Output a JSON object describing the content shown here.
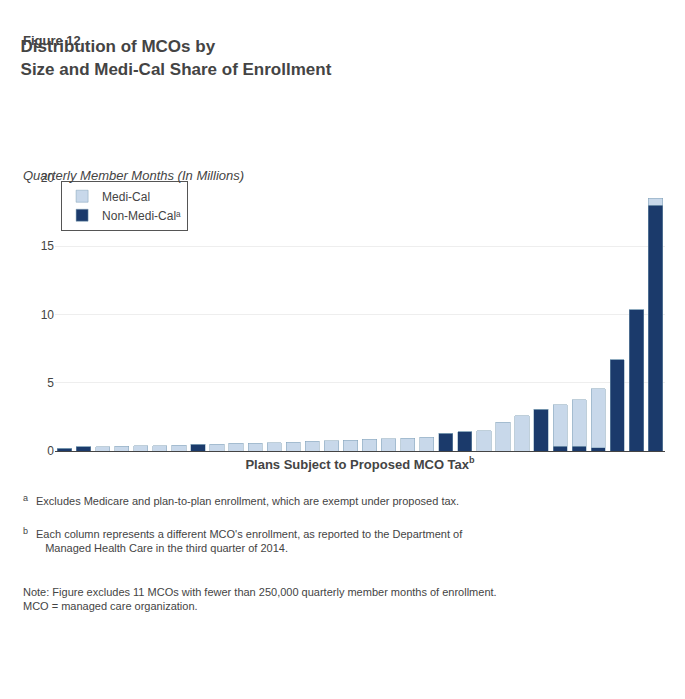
{
  "chart_data": {
    "type": "bar",
    "title": "Distribution of MCOs by\nSize and Medi-Cal Share of Enrollment",
    "subtitle": "Quarterly Member Months (In Millions)",
    "xlabel": "Plans Subject to Proposed MCO Tax",
    "categories": [
      null,
      null,
      null,
      null,
      null,
      null,
      null,
      null,
      null,
      null,
      null,
      null,
      null,
      null,
      null,
      null,
      null,
      null,
      null,
      null,
      null,
      null,
      null,
      null,
      null,
      null,
      null,
      null,
      null,
      null,
      null,
      null
    ],
    "series": [
      {
        "name": "Non-Medi-Calᵃ",
        "color": "#1B3A6B",
        "values": [
          0.22,
          0.3,
          0.0,
          0.0,
          0.0,
          0.0,
          0.0,
          0.5,
          0.0,
          0.0,
          0.0,
          0.0,
          0.0,
          0.0,
          0.0,
          0.0,
          0.0,
          0.0,
          0.0,
          0.0,
          1.3,
          1.4,
          0.0,
          0.0,
          0.0,
          3.05,
          0.35,
          0.35,
          0.25,
          6.7,
          10.35,
          18.0
        ]
      },
      {
        "name": "Medi-Cal",
        "color": "#C8D8EA",
        "values": [
          0.0,
          0.0,
          0.32,
          0.35,
          0.38,
          0.4,
          0.42,
          0.0,
          0.5,
          0.55,
          0.58,
          0.62,
          0.65,
          0.7,
          0.75,
          0.8,
          0.85,
          0.9,
          0.95,
          1.0,
          0.0,
          0.0,
          1.5,
          2.1,
          2.6,
          0.0,
          3.05,
          3.4,
          4.3,
          0.0,
          0.0,
          0.5
        ]
      }
    ],
    "stacked": true,
    "ylim": [
      0,
      20
    ],
    "yticks": [
      0,
      5,
      10,
      15,
      20
    ],
    "grid": true,
    "legend": "upper left",
    "tick_labels": "y",
    "annotations": [
      "Figure 12",
      "b",
      "a",
      "Excludes Medicare and plan-to-plan enrollment, which are exempt under proposed tax.",
      "b",
      "Each column represents a different MCO's enrollment, as reported to the Department of\n   Managed Health Care in the third quarter of 2014.",
      "Note: Figure excludes 11 MCOs with fewer than 250,000 quarterly member months of enrollment.\nMCO = managed care organization."
    ]
  }
}
